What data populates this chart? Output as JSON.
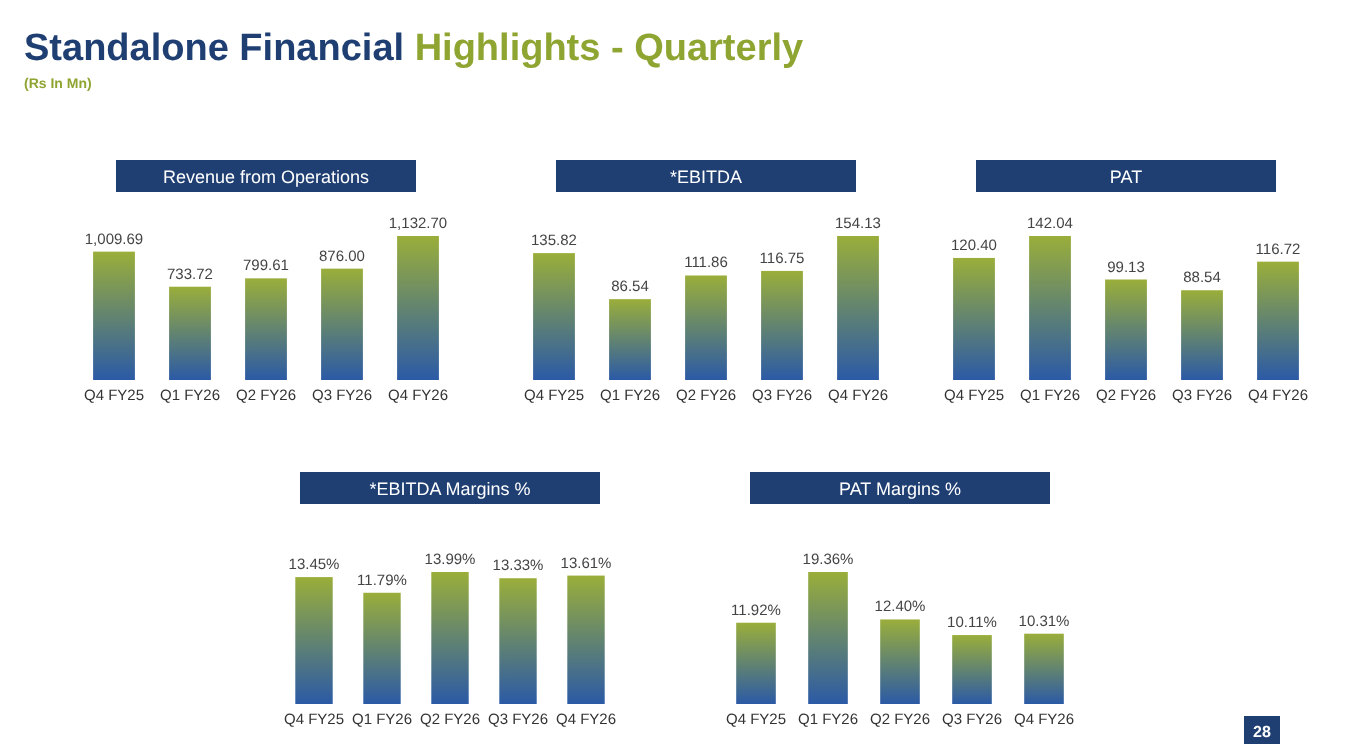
{
  "chart_data": [
    {
      "type": "other",
      "title": "Standalone Financial Highlights - Quarterly",
      "subtitle": "(Rs In Mn)",
      "annotations": [
        "28"
      ]
    },
    {
      "type": "bar",
      "title": "Revenue from Operations",
      "categories": [
        "Q4 FY25",
        "Q1 FY26",
        "Q2 FY26",
        "Q3 FY26",
        "Q4 FY26"
      ],
      "values": [
        1009.69,
        733.72,
        799.61,
        876.0,
        1132.7
      ],
      "value_labels": [
        "1,009.69",
        "733.72",
        "799.61",
        "876.00",
        "1,132.70"
      ],
      "color": "#9aae3a"
    },
    {
      "type": "bar",
      "title": "*EBITDA",
      "categories": [
        "Q4 FY25",
        "Q1 FY26",
        "Q2 FY26",
        "Q3 FY26",
        "Q4 FY26"
      ],
      "values": [
        135.82,
        86.54,
        111.86,
        116.75,
        154.13
      ],
      "value_labels": [
        "135.82",
        "86.54",
        "111.86",
        "116.75",
        "154.13"
      ],
      "color": "#9aae3a"
    },
    {
      "type": "bar",
      "title": "PAT",
      "categories": [
        "Q4 FY25",
        "Q1 FY26",
        "Q2 FY26",
        "Q3 FY26",
        "Q4 FY26"
      ],
      "values": [
        120.4,
        142.04,
        99.13,
        88.54,
        116.72
      ],
      "value_labels": [
        "120.40",
        "142.04",
        "99.13",
        "88.54",
        "116.72"
      ],
      "color": "#9aae3a"
    },
    {
      "type": "bar",
      "title": "*EBITDA Margins %",
      "categories": [
        "Q4 FY25",
        "Q1 FY26",
        "Q2 FY26",
        "Q3 FY26",
        "Q4 FY26"
      ],
      "values": [
        13.45,
        11.79,
        13.99,
        13.33,
        13.61
      ],
      "value_labels": [
        "13.45%",
        "11.79%",
        "13.99%",
        "13.33%",
        "13.61%"
      ],
      "color": "#9aae3a"
    },
    {
      "type": "bar",
      "title": "PAT Margins %",
      "categories": [
        "Q4 FY25",
        "Q1 FY26",
        "Q2 FY26",
        "Q3 FY26",
        "Q4 FY26"
      ],
      "values": [
        11.92,
        19.36,
        12.4,
        10.11,
        10.31
      ],
      "value_labels": [
        "11.92%",
        "19.36%",
        "12.40%",
        "10.11%",
        "10.31%"
      ],
      "color": "#9aae3a"
    }
  ]
}
